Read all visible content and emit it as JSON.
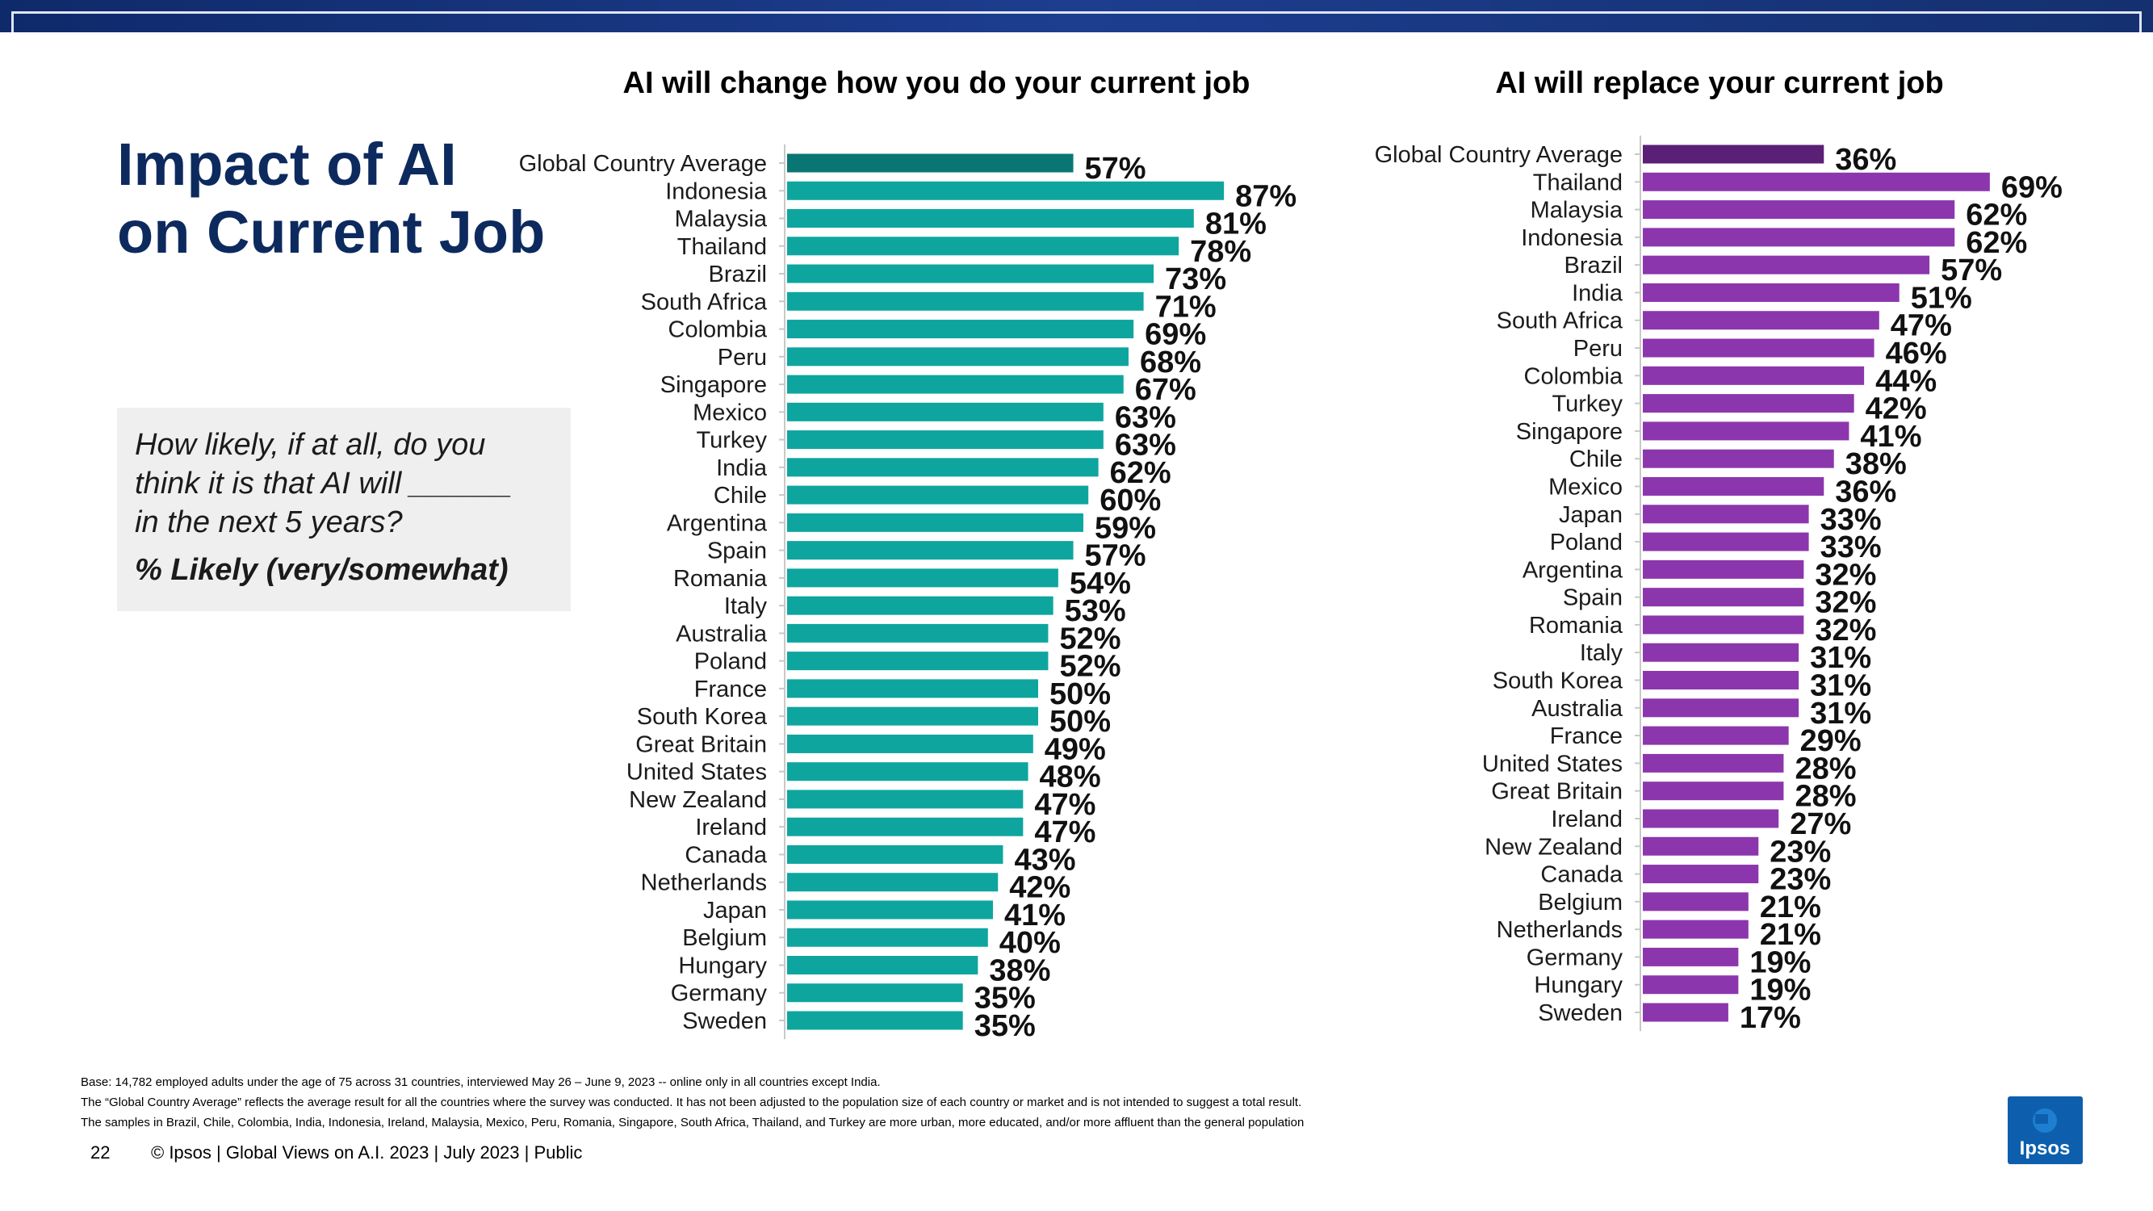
{
  "page": {
    "title_line1": "Impact of AI",
    "title_line2": "on Current Job",
    "question_line1": "How likely, if at all, do you",
    "question_line2": "think it is that AI will ______",
    "question_line3": "in the next 5 years?",
    "question_measure": "% Likely (very/somewhat)",
    "footnote1": "Base: 14,782 employed adults under the age of 75 across 31 countries, interviewed May 26 – June 9, 2023 -- online only in all countries except India.",
    "footnote2": "The “Global Country Average” reflects the average result for all the countries where the survey was conducted. It has not been adjusted to the population size of each country or market and is not intended to suggest a total result.",
    "footnote3": "The samples in Brazil, Chile, Colombia, India, Indonesia, Ireland, Malaysia, Mexico, Peru, Romania, Singapore, South Africa, Thailand, and Turkey are more urban, more educated, and/or more affluent than the general population",
    "page_number": "22",
    "copyright": "© Ipsos | Global Views on A.I. 2023 | July 2023 | Public",
    "logo_text": "Ipsos"
  },
  "colors": {
    "teal": "#0ea59f",
    "teal_highlight": "#0a7673",
    "purple": "#8c36ad",
    "purple_highlight": "#5a2076",
    "title_blue": "#0d2a5e",
    "logo_blue": "#0d5fae"
  },
  "chart_data": [
    {
      "type": "bar",
      "orientation": "horizontal",
      "title": "AI will change how you do your current job",
      "unit": "%",
      "categories": [
        "Global Country Average",
        "Indonesia",
        "Malaysia",
        "Thailand",
        "Brazil",
        "South Africa",
        "Colombia",
        "Peru",
        "Singapore",
        "Mexico",
        "Turkey",
        "India",
        "Chile",
        "Argentina",
        "Spain",
        "Romania",
        "Italy",
        "Australia",
        "Poland",
        "France",
        "South Korea",
        "Great Britain",
        "United States",
        "New Zealand",
        "Ireland",
        "Canada",
        "Netherlands",
        "Japan",
        "Belgium",
        "Hungary",
        "Germany",
        "Sweden"
      ],
      "values": [
        57,
        87,
        81,
        78,
        73,
        71,
        69,
        68,
        67,
        63,
        63,
        62,
        60,
        59,
        57,
        54,
        53,
        52,
        52,
        50,
        50,
        49,
        48,
        47,
        47,
        43,
        42,
        41,
        40,
        38,
        35,
        35
      ],
      "highlight_index": 0
    },
    {
      "type": "bar",
      "orientation": "horizontal",
      "title": "AI will replace your current job",
      "unit": "%",
      "categories": [
        "Global Country Average",
        "Thailand",
        "Malaysia",
        "Indonesia",
        "Brazil",
        "India",
        "South Africa",
        "Peru",
        "Colombia",
        "Turkey",
        "Singapore",
        "Chile",
        "Mexico",
        "Japan",
        "Poland",
        "Argentina",
        "Spain",
        "Romania",
        "Italy",
        "South Korea",
        "Australia",
        "France",
        "United States",
        "Great Britain",
        "Ireland",
        "New Zealand",
        "Canada",
        "Belgium",
        "Netherlands",
        "Germany",
        "Hungary",
        "Sweden"
      ],
      "values": [
        36,
        69,
        62,
        62,
        57,
        51,
        47,
        46,
        44,
        42,
        41,
        38,
        36,
        33,
        33,
        32,
        32,
        32,
        31,
        31,
        31,
        29,
        28,
        28,
        27,
        23,
        23,
        21,
        21,
        19,
        19,
        17
      ],
      "highlight_index": 0
    }
  ]
}
